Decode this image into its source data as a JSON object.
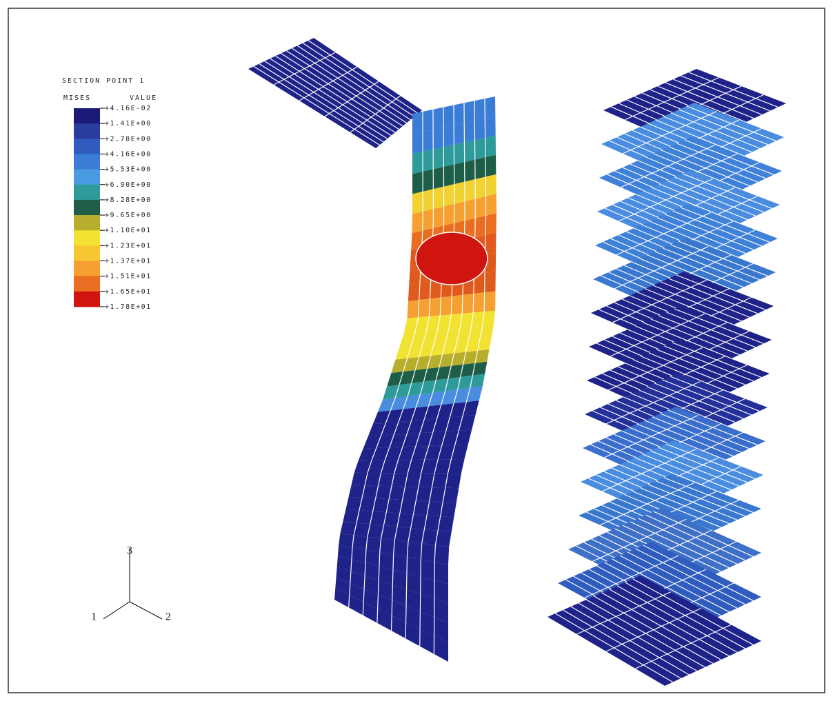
{
  "legend": {
    "title": "SECTION POINT 1",
    "variable": "MISES",
    "value_header": "VALUE",
    "values": [
      "+4.16E-02",
      "+1.41E+00",
      "+2.78E+00",
      "+4.16E+00",
      "+5.53E+00",
      "+6.90E+00",
      "+8.28E+00",
      "+9.65E+00",
      "+1.10E+01",
      "+1.23E+01",
      "+1.37E+01",
      "+1.51E+01",
      "+1.65E+01",
      "+1.78E+01"
    ],
    "colors": [
      "#1c1a78",
      "#2a3c9e",
      "#2f5cbe",
      "#3a7cd6",
      "#4a9ce2",
      "#2f9a9a",
      "#1e5e48",
      "#b8ae2e",
      "#f2e232",
      "#f8c632",
      "#f5a030",
      "#ea6e22",
      "#d0140f"
    ]
  },
  "triad": {
    "labels": [
      "1",
      "2",
      "3"
    ]
  }
}
